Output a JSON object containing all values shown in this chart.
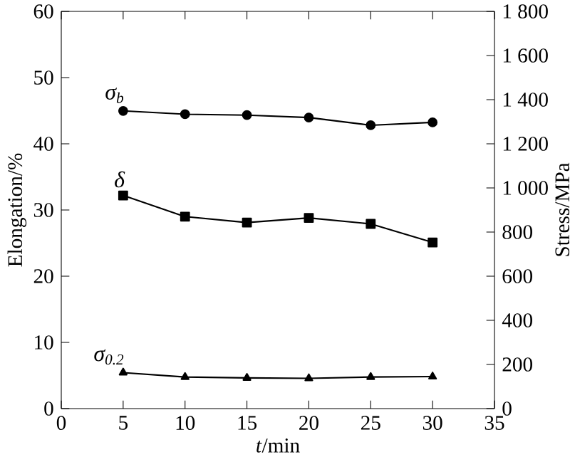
{
  "chart_data": {
    "type": "line",
    "xlabel": "*t*/min",
    "ylabel": "Elongation/%",
    "y2label": "Stress/MPa",
    "x": [
      5,
      10,
      15,
      20,
      25,
      30
    ],
    "xlim": [
      0,
      35
    ],
    "xticks": [
      0,
      5,
      10,
      15,
      20,
      25,
      30,
      35
    ],
    "ylim": [
      0,
      60
    ],
    "yticks": [
      0,
      10,
      20,
      30,
      40,
      50,
      60
    ],
    "y2lim": [
      0,
      1800
    ],
    "y2ticks": [
      0,
      200,
      400,
      600,
      800,
      {
        "value": 1000,
        "label": "1 000"
      },
      {
        "value": 1200,
        "label": "1 200"
      },
      {
        "value": 1400,
        "label": "1 400"
      },
      {
        "value": 1600,
        "label": "1 600"
      },
      {
        "value": 1800,
        "label": "1 800"
      }
    ],
    "legend": false,
    "grid": false,
    "line_style": "solid",
    "series": [
      {
        "name": "σ$_{b}$",
        "color": "#000000",
        "axis": "y2",
        "marker": "circle",
        "values": [
          1349,
          1334,
          1330,
          1319,
          1284,
          1297
        ]
      },
      {
        "name": "δ",
        "color": "#000000",
        "marker": "square",
        "values": [
          32.2,
          29.0,
          28.1,
          28.8,
          27.9,
          25.1
        ]
      },
      {
        "name": "σ$_{0.2}$",
        "color": "#000000",
        "axis": "y2",
        "marker": "triangle",
        "values": [
          163,
          143,
          139,
          137,
          143,
          145
        ]
      }
    ]
  }
}
